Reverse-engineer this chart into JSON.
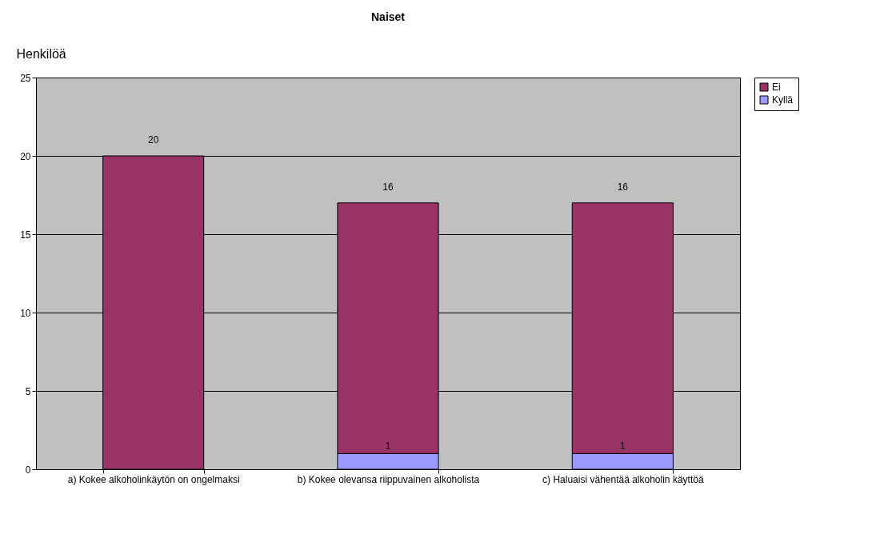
{
  "chart_data": {
    "type": "bar",
    "title": "Naiset",
    "ylabel": "Henkilöä",
    "categories": [
      "a) Kokee alkoholinkäytön on ongelmaksi",
      "b) Kokee olevansa riippuvainen alkoholista",
      "c) Haluaisi vähentää alkoholin käyttöä"
    ],
    "stacked": true,
    "series": [
      {
        "name": "Kyllä",
        "color": "#9999ff",
        "values": [
          0,
          1,
          1
        ],
        "value_labels": [
          null,
          "1",
          "1"
        ]
      },
      {
        "name": "Ei",
        "color": "#993366",
        "values": [
          20,
          16,
          16
        ],
        "value_labels": [
          "20",
          "16",
          "16"
        ]
      }
    ],
    "ylim": [
      0,
      25
    ],
    "yticks": [
      0,
      5,
      10,
      15,
      20,
      25
    ],
    "grid": "y",
    "legend": "right"
  }
}
